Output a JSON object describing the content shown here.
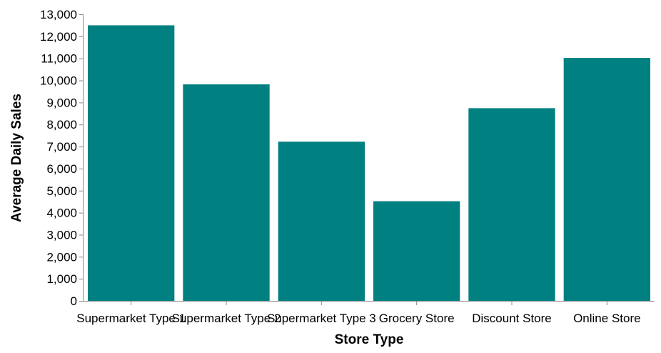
{
  "chart_data": {
    "type": "bar",
    "categories": [
      "Supermarket Type 1",
      "Supermarket Type 2",
      "Supermarket Type 3",
      "Grocery Store",
      "Discount Store",
      "Online Store"
    ],
    "values": [
      12500,
      9820,
      7220,
      4520,
      8740,
      11020
    ],
    "title": "",
    "xlabel": "Store Type",
    "ylabel": "Average Daily Sales",
    "ylim": [
      0,
      13000
    ],
    "yticks": [
      0,
      1000,
      2000,
      3000,
      4000,
      5000,
      6000,
      7000,
      8000,
      9000,
      10000,
      11000,
      12000,
      13000
    ],
    "ytick_labels": [
      "0",
      "1,000",
      "2,000",
      "3,000",
      "4,000",
      "5,000",
      "6,000",
      "7,000",
      "8,000",
      "9,000",
      "10,000",
      "11,000",
      "12,000",
      "13,000"
    ],
    "bar_color": "#008080",
    "axis_color": "#888888",
    "grid": false,
    "legend": "none"
  }
}
